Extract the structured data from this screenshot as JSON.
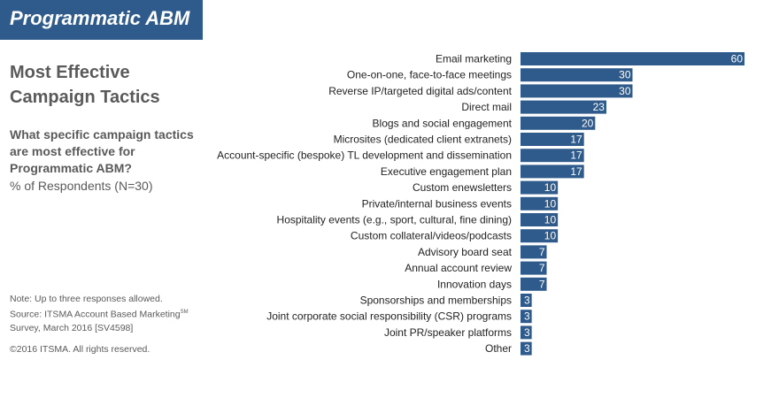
{
  "banner": {
    "title": "Programmatic ABM"
  },
  "heading": {
    "title": "Most Effective Campaign Tactics"
  },
  "question": {
    "text": "What specific campaign tactics are most effective for Programmatic ABM?",
    "respondents": "% of Respondents (N=30)"
  },
  "footnote": {
    "note": "Note: Up to three responses allowed.",
    "source_prefix": "Source: ITSMA Account Based Marketing",
    "source_mark": "SM",
    "source_suffix": "Survey, March 2016 [SV4598]",
    "copyright": "©2016 ITSMA. All rights reserved."
  },
  "colors": {
    "bar": "#2f5b8c",
    "banner": "#2f5b8c",
    "text": "#5a5a5a"
  },
  "chart_data": {
    "type": "bar",
    "orientation": "horizontal",
    "categories": [
      "Email marketing",
      "One-on-one, face-to-face meetings",
      "Reverse IP/targeted digital ads/content",
      "Direct mail",
      "Blogs and social engagement",
      "Microsites (dedicated client extranets)",
      "Account-specific (bespoke) TL development and dissemination",
      "Executive engagement plan",
      "Custom enewsletters",
      "Private/internal business events",
      "Hospitality events (e.g., sport, cultural, fine dining)",
      "Custom collateral/videos/podcasts",
      "Advisory board seat",
      "Annual account review",
      "Innovation days",
      "Sponsorships and memberships",
      "Joint corporate social responsibility (CSR) programs",
      "Joint PR/speaker platforms",
      "Other"
    ],
    "values": [
      60,
      30,
      30,
      23,
      20,
      17,
      17,
      17,
      10,
      10,
      10,
      10,
      7,
      7,
      7,
      3,
      3,
      3,
      3
    ],
    "xlim": [
      0,
      60
    ],
    "data_labels": true,
    "grid": false
  }
}
